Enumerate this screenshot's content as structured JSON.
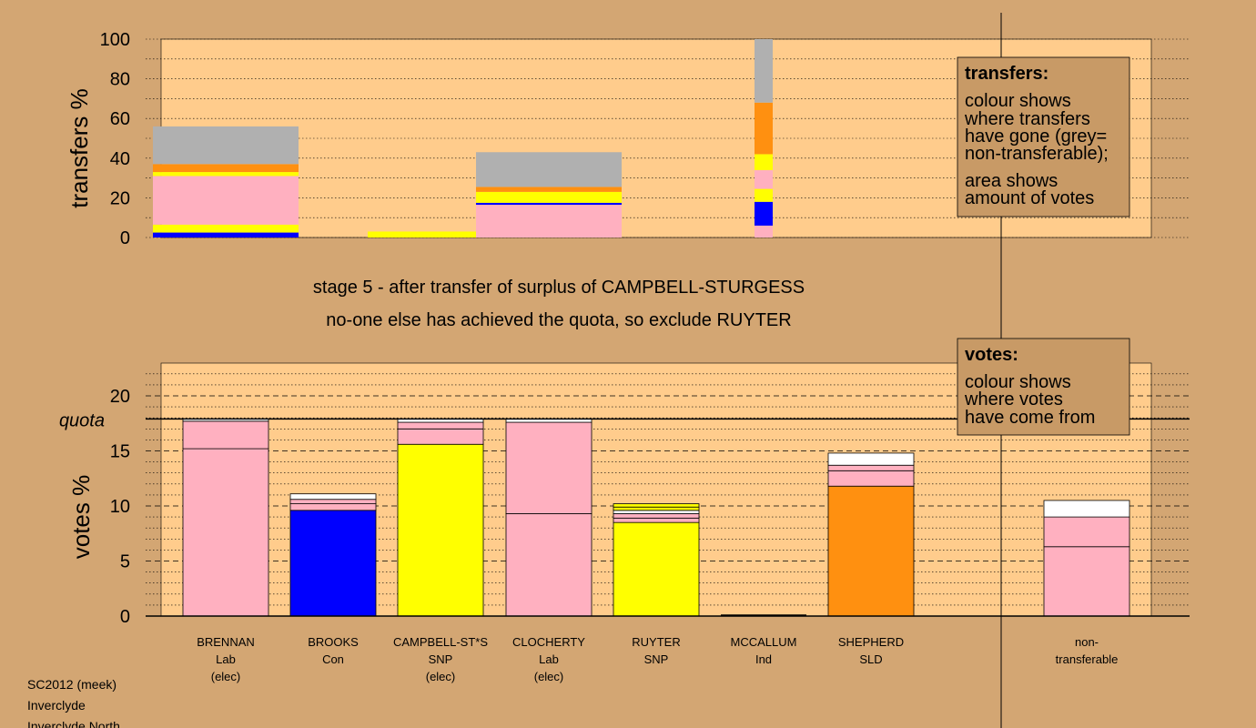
{
  "colors": {
    "Lab": "#ffb0c0",
    "Con": "#0000ff",
    "SNP": "#ffff00",
    "SLD": "#ff9010",
    "non_transferable": "#b0b0b0",
    "white": "#ffffff",
    "panel": "#ffcc8c",
    "background": "#d3a673",
    "legend_box": "#c89a66"
  },
  "caption": {
    "line1": "stage 5 - after transfer of surplus of CAMPBELL-STURGESS",
    "line2": "no-one else has achieved the quota, so exclude RUYTER"
  },
  "legend_transfers": {
    "title": "transfers:",
    "lines": [
      "colour shows",
      "where transfers",
      "have gone (grey=",
      "non-transferable);",
      "area shows",
      "amount of votes"
    ]
  },
  "legend_votes": {
    "title": "votes:",
    "lines": [
      "colour shows",
      "where votes",
      "have come from"
    ]
  },
  "footer": [
    "SC2012 (meek)",
    "Inverclyde",
    "Inverclyde North"
  ],
  "chart_data": [
    {
      "type": "bar",
      "name": "transfers",
      "ylabel": "transfers %",
      "ylim": [
        0,
        100
      ],
      "yticks": [
        0,
        20,
        40,
        60,
        80,
        100
      ],
      "grid": "dotted",
      "bars": [
        {
          "center": "BRENNAN",
          "width": "wide",
          "segments": [
            {
              "party": "Con",
              "from": 0,
              "to": 2.5
            },
            {
              "party": "SNP",
              "from": 2.5,
              "to": 6.5
            },
            {
              "party": "Lab",
              "from": 6.5,
              "to": 31
            },
            {
              "party": "SNP",
              "from": 31,
              "to": 33
            },
            {
              "party": "SLD",
              "from": 33,
              "to": 37
            },
            {
              "party": "non_transferable",
              "from": 37,
              "to": 56
            }
          ]
        },
        {
          "center": "CAMPBELL-ST*S",
          "width": "wide",
          "segments": [
            {
              "party": "SNP",
              "from": 0,
              "to": 3
            }
          ]
        },
        {
          "center": "CLOCHERTY",
          "width": "wide",
          "segments": [
            {
              "party": "Lab",
              "from": 0,
              "to": 16.5
            },
            {
              "party": "Con",
              "from": 16.5,
              "to": 17.5
            },
            {
              "party": "SNP",
              "from": 17.5,
              "to": 23
            },
            {
              "party": "SLD",
              "from": 23,
              "to": 25.5
            },
            {
              "party": "non_transferable",
              "from": 25.5,
              "to": 43
            }
          ]
        },
        {
          "center": "MCCALLUM",
          "width": "narrow",
          "segments": [
            {
              "party": "Lab",
              "from": 0,
              "to": 6
            },
            {
              "party": "Con",
              "from": 6,
              "to": 18
            },
            {
              "party": "SNP",
              "from": 18,
              "to": 24.5
            },
            {
              "party": "Lab",
              "from": 24.5,
              "to": 34
            },
            {
              "party": "SNP",
              "from": 34,
              "to": 42
            },
            {
              "party": "SLD",
              "from": 42,
              "to": 68
            },
            {
              "party": "non_transferable",
              "from": 68,
              "to": 100
            }
          ]
        }
      ]
    },
    {
      "type": "bar",
      "name": "votes",
      "ylabel": "votes %",
      "ylim": [
        0,
        22
      ],
      "yticks": [
        0,
        5,
        10,
        15,
        20
      ],
      "quota": 17.9,
      "quota_label": "quota",
      "grid": "dashed",
      "categories": [
        {
          "name": "BRENNAN",
          "party": "Lab",
          "status": "(elec)"
        },
        {
          "name": "BROOKS",
          "party": "Con",
          "status": ""
        },
        {
          "name": "CAMPBELL-ST*S",
          "party": "SNP",
          "status": "(elec)"
        },
        {
          "name": "CLOCHERTY",
          "party": "Lab",
          "status": "(elec)"
        },
        {
          "name": "RUYTER",
          "party": "SNP",
          "status": ""
        },
        {
          "name": "MCCALLUM",
          "party": "Ind",
          "status": ""
        },
        {
          "name": "SHEPHERD",
          "party": "SLD",
          "status": ""
        },
        {
          "name": "non-",
          "party": "transferable",
          "status": ""
        }
      ],
      "stacks": [
        [
          {
            "party": "Lab",
            "from": 0,
            "to": 15.2
          },
          {
            "party": "Lab",
            "from": 15.2,
            "to": 17.7
          },
          {
            "party": "white",
            "from": 17.7,
            "to": 17.9
          }
        ],
        [
          {
            "party": "Con",
            "from": 0,
            "to": 9.6
          },
          {
            "party": "Lab",
            "from": 9.6,
            "to": 10.2
          },
          {
            "party": "Lab",
            "from": 10.2,
            "to": 10.6
          },
          {
            "party": "white",
            "from": 10.6,
            "to": 11.1
          }
        ],
        [
          {
            "party": "SNP",
            "from": 0,
            "to": 15.6
          },
          {
            "party": "Lab",
            "from": 15.6,
            "to": 17.0
          },
          {
            "party": "Lab",
            "from": 17.0,
            "to": 17.6
          },
          {
            "party": "white",
            "from": 17.6,
            "to": 17.9
          }
        ],
        [
          {
            "party": "Lab",
            "from": 0,
            "to": 9.3
          },
          {
            "party": "Lab",
            "from": 9.3,
            "to": 17.6
          },
          {
            "party": "white",
            "from": 17.6,
            "to": 17.9
          }
        ],
        [
          {
            "party": "SNP",
            "from": 0,
            "to": 8.5
          },
          {
            "party": "Lab",
            "from": 8.5,
            "to": 8.9
          },
          {
            "party": "Lab",
            "from": 8.9,
            "to": 9.3
          },
          {
            "party": "white",
            "from": 9.3,
            "to": 9.6
          },
          {
            "party": "SNP",
            "from": 9.6,
            "to": 9.9
          },
          {
            "party": "SNP",
            "from": 9.9,
            "to": 10.2
          }
        ],
        [],
        [
          {
            "party": "SLD",
            "from": 0,
            "to": 11.8
          },
          {
            "party": "Lab",
            "from": 11.8,
            "to": 13.2
          },
          {
            "party": "Lab",
            "from": 13.2,
            "to": 13.7
          },
          {
            "party": "white",
            "from": 13.7,
            "to": 14.8
          }
        ],
        [
          {
            "party": "Lab",
            "from": 0,
            "to": 6.3
          },
          {
            "party": "Lab",
            "from": 6.3,
            "to": 9.0
          },
          {
            "party": "white",
            "from": 9.0,
            "to": 10.5
          }
        ]
      ]
    }
  ]
}
